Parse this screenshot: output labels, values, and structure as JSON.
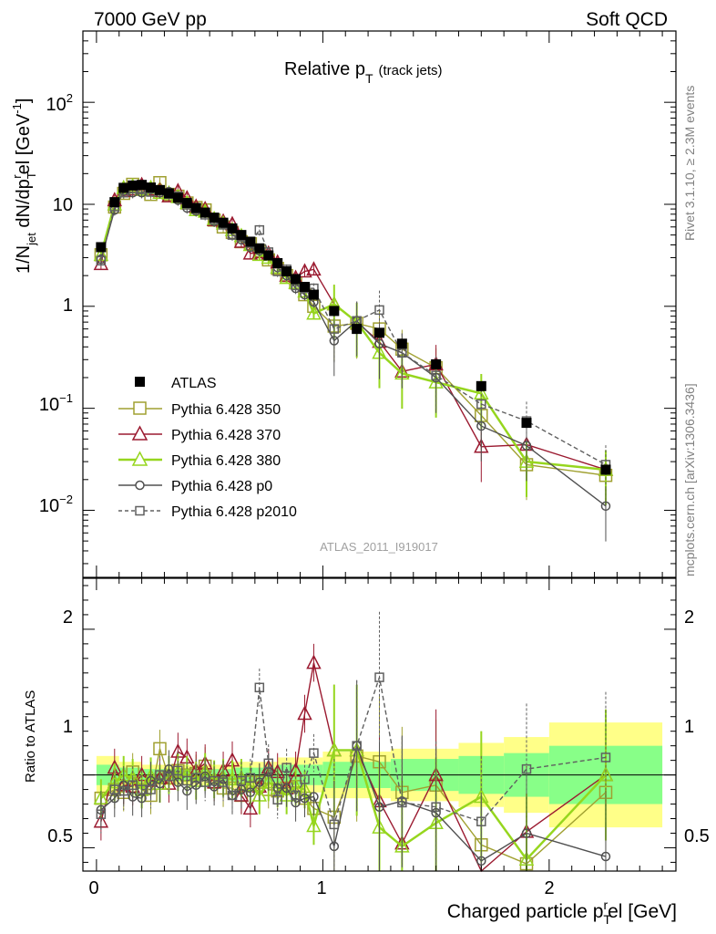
{
  "header": {
    "left": "7000 GeV pp",
    "right": "Soft QCD"
  },
  "side_labels": {
    "rivet": "Rivet 3.1.10, ≥ 2.3M events",
    "mcplots": "mcplots.cern.ch [arXiv:1306.3436]"
  },
  "watermark": "ATLAS_2011_I919017",
  "colors": {
    "atlas": "#000000",
    "p350": "#a0a030",
    "p370": "#9b1a30",
    "p380": "#96d61e",
    "p0": "#505050",
    "p2010": "#606060",
    "band_yellow": "#ffff88",
    "band_green": "#88ff88"
  },
  "chart_data": [
    {
      "type": "scatter",
      "title": "Relative p_T (track jets)",
      "title_main": "Relative p",
      "title_sub": "T",
      "title_extra": "(track jets)",
      "ylabel": "1/N_jet dN/dp_T^rel [GeV^-1]",
      "ylabel_parts": {
        "a": "1/N",
        "b": "jet",
        "c": " dN/dp",
        "d": "T",
        "e": "r",
        "f": "el [GeV",
        "g": "-1",
        "h": "]"
      },
      "yscale": "log",
      "ylim": [
        0.0022,
        500
      ],
      "xlim": [
        -0.06,
        2.56
      ],
      "ytick_labels": [
        "10^-2",
        "10^-1",
        "1",
        "10",
        "10^2"
      ],
      "legend_position": "lower-left",
      "series": [
        {
          "name": "ATLAS",
          "key": "atlas",
          "marker": "filled-square",
          "x": [
            0.02,
            0.08,
            0.12,
            0.16,
            0.2,
            0.24,
            0.28,
            0.32,
            0.36,
            0.4,
            0.44,
            0.48,
            0.52,
            0.56,
            0.6,
            0.64,
            0.68,
            0.72,
            0.76,
            0.8,
            0.84,
            0.88,
            0.92,
            0.96,
            1.05,
            1.15,
            1.25,
            1.35,
            1.5,
            1.7,
            1.9,
            2.25
          ],
          "y": [
            3.8,
            10.5,
            14.5,
            15.3,
            15.5,
            14.6,
            13.8,
            12.8,
            11.6,
            10.3,
            9.2,
            8.3,
            7.4,
            6.6,
            5.8,
            5.0,
            4.3,
            3.7,
            3.15,
            2.65,
            2.2,
            1.85,
            1.55,
            1.3,
            0.9,
            0.6,
            0.55,
            0.43,
            0.27,
            0.165,
            0.072,
            0.025
          ]
        },
        {
          "name": "Pythia 6.428 350",
          "key": "p350",
          "marker": "open-square",
          "x": [
            0.02,
            0.08,
            0.12,
            0.16,
            0.2,
            0.24,
            0.28,
            0.32,
            0.36,
            0.4,
            0.44,
            0.48,
            0.52,
            0.56,
            0.6,
            0.64,
            0.68,
            0.72,
            0.76,
            0.8,
            0.84,
            0.88,
            0.92,
            0.96,
            1.05,
            1.15,
            1.25,
            1.35,
            1.5,
            1.7,
            1.9,
            2.25
          ],
          "y": [
            3.2,
            9.4,
            12.8,
            15.7,
            14.0,
            12.5,
            16.3,
            12.5,
            12.0,
            10.3,
            9.3,
            8.8,
            7.0,
            6.0,
            5.3,
            4.3,
            4.1,
            3.5,
            2.85,
            2.35,
            2.0,
            1.7,
            1.3,
            1.0,
            0.64,
            0.68,
            0.6,
            0.38,
            0.25,
            0.085,
            0.028,
            0.022
          ]
        },
        {
          "name": "Pythia 6.428 370",
          "key": "p370",
          "marker": "open-triangle",
          "x": [
            0.02,
            0.08,
            0.12,
            0.16,
            0.2,
            0.24,
            0.28,
            0.32,
            0.36,
            0.4,
            0.44,
            0.48,
            0.52,
            0.56,
            0.6,
            0.64,
            0.68,
            0.72,
            0.76,
            0.8,
            0.84,
            0.88,
            0.92,
            0.96,
            1.05,
            1.15,
            1.25,
            1.35,
            1.5,
            1.7,
            1.9,
            2.25
          ],
          "y": [
            2.6,
            11.0,
            13.5,
            14.0,
            15.5,
            14.0,
            13.5,
            12.0,
            13.5,
            11.5,
            9.5,
            9.0,
            7.0,
            6.8,
            6.4,
            4.3,
            3.3,
            3.4,
            3.3,
            2.7,
            2.0,
            1.9,
            2.2,
            2.3,
            1.05,
            0.7,
            0.45,
            0.23,
            0.27,
            0.042,
            0.044,
            0.025
          ]
        },
        {
          "name": "Pythia 6.428 380",
          "key": "p380",
          "marker": "open-triangle",
          "x": [
            0.02,
            0.08,
            0.12,
            0.16,
            0.2,
            0.24,
            0.28,
            0.32,
            0.36,
            0.4,
            0.44,
            0.48,
            0.52,
            0.56,
            0.6,
            0.64,
            0.68,
            0.72,
            0.76,
            0.8,
            0.84,
            0.88,
            0.92,
            0.96,
            1.05,
            1.15,
            1.25,
            1.35,
            1.5,
            1.7,
            1.9,
            2.25
          ],
          "y": [
            3.2,
            10.0,
            14.5,
            15.0,
            14.0,
            14.5,
            13.0,
            12.8,
            11.8,
            10.3,
            8.8,
            8.5,
            7.2,
            6.5,
            5.6,
            4.9,
            4.0,
            3.2,
            3.0,
            2.4,
            1.9,
            1.7,
            1.4,
            0.85,
            1.05,
            0.7,
            0.35,
            0.22,
            0.18,
            0.14,
            0.03,
            0.025
          ]
        },
        {
          "name": "Pythia 6.428 p0",
          "key": "p0",
          "marker": "open-circle",
          "x": [
            0.02,
            0.08,
            0.12,
            0.16,
            0.2,
            0.24,
            0.28,
            0.32,
            0.36,
            0.4,
            0.44,
            0.48,
            0.52,
            0.56,
            0.6,
            0.64,
            0.68,
            0.72,
            0.76,
            0.8,
            0.84,
            0.88,
            0.92,
            0.96,
            1.05,
            1.15,
            1.25,
            1.35,
            1.5,
            1.7,
            1.9,
            2.25
          ],
          "y": [
            2.9,
            8.8,
            13.5,
            13.0,
            13.0,
            14.0,
            13.0,
            13.3,
            11.0,
            9.2,
            8.6,
            8.2,
            6.8,
            6.4,
            5.0,
            4.5,
            3.8,
            3.5,
            3.2,
            2.4,
            2.0,
            1.5,
            1.3,
            1.1,
            0.46,
            0.72,
            0.43,
            0.35,
            0.2,
            0.067,
            0.043,
            0.011
          ]
        },
        {
          "name": "Pythia 6.428 p2010",
          "key": "p2010",
          "marker": "open-square",
          "dashed": true,
          "x": [
            0.02,
            0.08,
            0.12,
            0.16,
            0.2,
            0.24,
            0.28,
            0.32,
            0.36,
            0.4,
            0.44,
            0.48,
            0.52,
            0.56,
            0.6,
            0.64,
            0.68,
            0.72,
            0.76,
            0.8,
            0.84,
            0.88,
            0.92,
            0.96,
            1.05,
            1.15,
            1.25,
            1.35,
            1.5,
            1.7,
            1.9,
            2.25
          ],
          "y": [
            2.8,
            9.5,
            13.0,
            14.2,
            14.0,
            13.2,
            13.8,
            12.6,
            12.0,
            9.9,
            9.0,
            7.9,
            7.1,
            6.3,
            5.0,
            4.8,
            4.2,
            5.6,
            3.4,
            2.2,
            2.3,
            1.6,
            1.5,
            1.5,
            0.6,
            0.72,
            0.92,
            0.35,
            0.21,
            0.11,
            0.075,
            0.028
          ]
        }
      ]
    },
    {
      "type": "scatter",
      "ylabel": "Ratio to ATLAS",
      "xlabel": "Charged particle p_T^rel [GeV]",
      "xlabel_parts": {
        "a": "Charged particle p",
        "b": "T",
        "c": "r",
        "d": "el [GeV]"
      },
      "ylim": [
        0.34,
        2.35
      ],
      "xlim": [
        -0.06,
        2.56
      ],
      "xtick_labels": [
        "0",
        "1",
        "2"
      ],
      "ytick_labels": [
        "0.5",
        "1",
        "2"
      ],
      "bands": {
        "x_edges": [
          0.0,
          0.1,
          0.2,
          0.4,
          0.6,
          0.8,
          1.0,
          1.3,
          1.6,
          1.8,
          2.0,
          2.5
        ],
        "yellow_half_width": [
          0.13,
          0.09,
          0.07,
          0.07,
          0.09,
          0.12,
          0.16,
          0.18,
          0.22,
          0.26,
          0.36
        ],
        "green_half_width": [
          0.07,
          0.05,
          0.04,
          0.04,
          0.05,
          0.07,
          0.09,
          0.11,
          0.13,
          0.15,
          0.2
        ]
      },
      "series": [
        {
          "key": "p350",
          "x": [
            0.02,
            0.08,
            0.12,
            0.16,
            0.2,
            0.24,
            0.28,
            0.32,
            0.36,
            0.4,
            0.44,
            0.48,
            0.52,
            0.56,
            0.6,
            0.64,
            0.68,
            0.72,
            0.76,
            0.8,
            0.84,
            0.88,
            0.92,
            0.96,
            1.05,
            1.15,
            1.25,
            1.35,
            1.5,
            1.7,
            1.9,
            2.25
          ],
          "y": [
            0.84,
            0.9,
            0.88,
            1.02,
            0.9,
            0.86,
            1.18,
            0.98,
            1.03,
            1.0,
            1.01,
            1.06,
            0.95,
            0.91,
            0.91,
            0.86,
            0.95,
            0.95,
            0.9,
            0.89,
            0.91,
            0.92,
            0.84,
            0.77,
            0.71,
            1.13,
            1.09,
            0.88,
            0.93,
            0.52,
            0.39,
            0.88
          ]
        },
        {
          "key": "p370",
          "x": [
            0.02,
            0.08,
            0.12,
            0.16,
            0.2,
            0.24,
            0.28,
            0.32,
            0.36,
            0.4,
            0.44,
            0.48,
            0.52,
            0.56,
            0.6,
            0.64,
            0.68,
            0.72,
            0.76,
            0.8,
            0.84,
            0.88,
            0.92,
            0.96,
            1.05,
            1.15,
            1.25,
            1.35,
            1.5,
            1.7,
            1.9,
            2.25
          ],
          "y": [
            0.68,
            1.05,
            0.93,
            0.92,
            1.0,
            0.96,
            0.98,
            0.94,
            1.16,
            1.12,
            1.03,
            1.08,
            0.95,
            1.03,
            1.1,
            0.86,
            0.77,
            0.92,
            1.05,
            1.02,
            0.91,
            1.03,
            1.42,
            1.77,
            1.17,
            1.17,
            0.82,
            0.53,
            1.0,
            0.25,
            0.61,
            1.0
          ]
        },
        {
          "key": "p380",
          "x": [
            0.02,
            0.08,
            0.12,
            0.16,
            0.2,
            0.24,
            0.28,
            0.32,
            0.36,
            0.4,
            0.44,
            0.48,
            0.52,
            0.56,
            0.6,
            0.64,
            0.68,
            0.72,
            0.76,
            0.8,
            0.84,
            0.88,
            0.92,
            0.96,
            1.05,
            1.15,
            1.25,
            1.35,
            1.5,
            1.7,
            1.9,
            2.25
          ],
          "y": [
            0.84,
            0.95,
            1.0,
            0.98,
            0.9,
            0.99,
            0.94,
            1.0,
            1.02,
            1.0,
            0.96,
            1.02,
            0.97,
            0.98,
            0.97,
            0.98,
            0.93,
            0.86,
            0.95,
            0.91,
            0.86,
            0.92,
            0.9,
            0.65,
            1.17,
            1.17,
            0.64,
            0.51,
            0.67,
            0.85,
            0.42,
            1.0
          ]
        },
        {
          "key": "p0",
          "x": [
            0.02,
            0.08,
            0.12,
            0.16,
            0.2,
            0.24,
            0.28,
            0.32,
            0.36,
            0.4,
            0.44,
            0.48,
            0.52,
            0.56,
            0.6,
            0.64,
            0.68,
            0.72,
            0.76,
            0.8,
            0.84,
            0.88,
            0.92,
            0.96,
            1.05,
            1.15,
            1.25,
            1.35,
            1.5,
            1.7,
            1.9,
            2.25
          ],
          "y": [
            0.76,
            0.84,
            0.93,
            0.85,
            0.84,
            0.96,
            0.94,
            1.04,
            0.95,
            0.89,
            0.93,
            0.99,
            0.92,
            0.97,
            0.86,
            0.9,
            0.88,
            0.95,
            1.02,
            0.91,
            0.91,
            0.81,
            0.84,
            0.85,
            0.51,
            1.2,
            0.78,
            0.82,
            0.74,
            0.41,
            0.6,
            0.44
          ]
        },
        {
          "key": "p2010",
          "dashed": true,
          "x": [
            0.02,
            0.08,
            0.12,
            0.16,
            0.2,
            0.24,
            0.28,
            0.32,
            0.36,
            0.4,
            0.44,
            0.48,
            0.52,
            0.56,
            0.6,
            0.64,
            0.68,
            0.72,
            0.76,
            0.8,
            0.84,
            0.88,
            0.92,
            0.96,
            1.05,
            1.15,
            1.25,
            1.35,
            1.5,
            1.7,
            1.9,
            2.25
          ],
          "y": [
            0.73,
            0.9,
            0.89,
            0.93,
            0.9,
            0.9,
            1.0,
            0.99,
            1.03,
            0.96,
            0.98,
            0.95,
            0.96,
            0.95,
            0.86,
            0.96,
            0.98,
            1.6,
            1.08,
            0.83,
            1.05,
            0.86,
            0.97,
            1.15,
            0.66,
            1.2,
            1.67,
            0.81,
            0.78,
            0.68,
            1.04,
            1.12
          ]
        }
      ]
    }
  ]
}
